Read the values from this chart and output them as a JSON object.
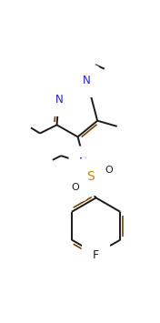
{
  "bg_color": "#ffffff",
  "bond_color": "#1a1a1a",
  "double_inner_color": "#7B3F00",
  "n_color": "#2020cc",
  "s_color": "#B8860B",
  "lw": 1.4,
  "lw_inner": 1.2,
  "figsize": [
    1.76,
    3.55
  ],
  "dpi": 100,
  "xlim": [
    0,
    176
  ],
  "ylim": [
    0,
    355
  ]
}
